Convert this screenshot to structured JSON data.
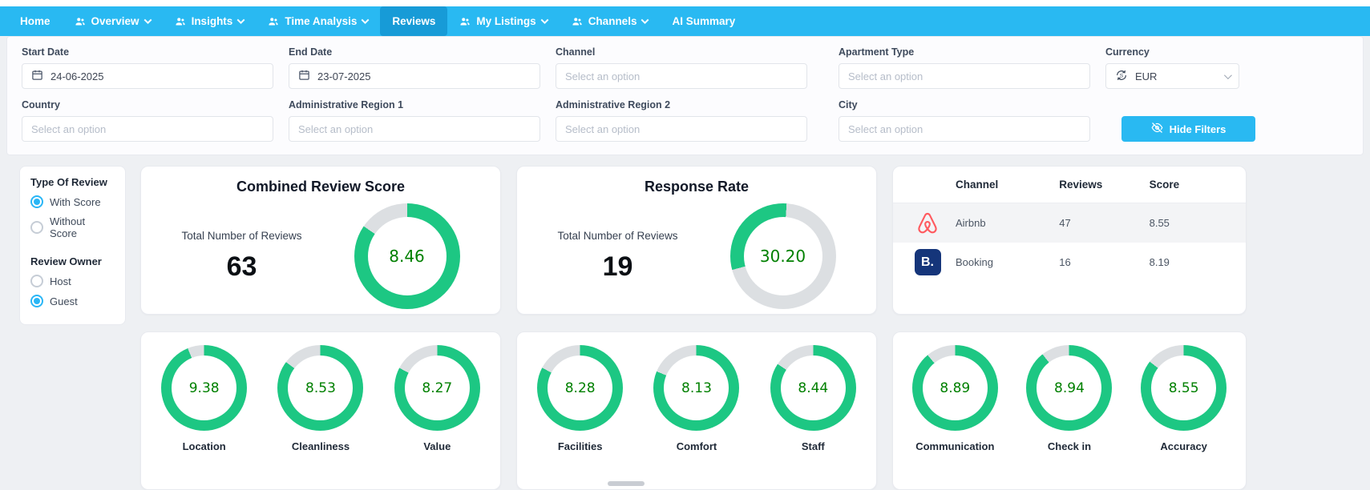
{
  "nav": {
    "items": [
      {
        "label": "Home",
        "icon": null,
        "dropdown": false,
        "active": false
      },
      {
        "label": "Overview",
        "icon": "users",
        "dropdown": true,
        "active": false
      },
      {
        "label": "Insights",
        "icon": "users",
        "dropdown": true,
        "active": false
      },
      {
        "label": "Time Analysis",
        "icon": "users",
        "dropdown": true,
        "active": false
      },
      {
        "label": "Reviews",
        "icon": null,
        "dropdown": false,
        "active": true
      },
      {
        "label": "My Listings",
        "icon": "users",
        "dropdown": true,
        "active": false
      },
      {
        "label": "Channels",
        "icon": "users",
        "dropdown": true,
        "active": false
      },
      {
        "label": "AI Summary",
        "icon": null,
        "dropdown": false,
        "active": false
      }
    ]
  },
  "filters": {
    "row1": [
      {
        "label": "Start Date",
        "value": "24-06-2025",
        "icon": "calendar"
      },
      {
        "label": "End Date",
        "value": "23-07-2025",
        "icon": "calendar"
      },
      {
        "label": "Channel",
        "placeholder": "Select an option"
      },
      {
        "label": "Apartment Type",
        "placeholder": "Select an option"
      },
      {
        "label": "Currency",
        "value": "EUR",
        "icon": "exchange",
        "chevron": true,
        "currency": true
      }
    ],
    "row2": [
      {
        "label": "Country",
        "placeholder": "Select an option"
      },
      {
        "label": "Administrative Region 1",
        "placeholder": "Select an option"
      },
      {
        "label": "Administrative Region 2",
        "placeholder": "Select an option"
      },
      {
        "label": "City",
        "placeholder": "Select an option"
      }
    ],
    "hide_filters_label": "Hide Filters"
  },
  "sidebar": {
    "groups": [
      {
        "title": "Type Of Review",
        "options": [
          {
            "label": "With Score",
            "selected": true
          },
          {
            "label": "Without Score",
            "selected": false
          }
        ]
      },
      {
        "title": "Review Owner",
        "options": [
          {
            "label": "Host",
            "selected": false
          },
          {
            "label": "Guest",
            "selected": true
          }
        ]
      }
    ]
  },
  "colors": {
    "navbar": "#29b9f2",
    "navbar_active": "#179bd7",
    "accent_blue": "#29b9f2",
    "gauge_fill": "#1dc783",
    "gauge_track": "#dcdfe2",
    "gauge_text": "#008000",
    "airbnb_red": "#FF5A5F",
    "booking_navy": "#15357a"
  },
  "chart_data": [
    {
      "type": "gauge",
      "title": "Combined Review Score",
      "metric_label": "Total Number of Reviews",
      "metric_value": "63",
      "value": 8.46,
      "max": 10,
      "display": "8.46"
    },
    {
      "type": "gauge",
      "title": "Response Rate",
      "metric_label": "Total Number of Reviews",
      "metric_value": "19",
      "value": 30.2,
      "max": 100,
      "display": "30.20",
      "start_deg": 255
    },
    {
      "type": "table",
      "columns": [
        "Channel",
        "Reviews",
        "Score"
      ],
      "rows": [
        {
          "channel": "Airbnb",
          "icon": "airbnb",
          "reviews": "47",
          "score": "8.55"
        },
        {
          "channel": "Booking",
          "icon": "booking",
          "reviews": "16",
          "score": "8.19"
        }
      ]
    },
    {
      "type": "gauge_group",
      "max": 10,
      "gauges": [
        {
          "label": "Location",
          "value": 9.38,
          "display": "9.38"
        },
        {
          "label": "Cleanliness",
          "value": 8.53,
          "display": "8.53"
        },
        {
          "label": "Value",
          "value": 8.27,
          "display": "8.27"
        }
      ]
    },
    {
      "type": "gauge_group",
      "max": 10,
      "gauges": [
        {
          "label": "Facilities",
          "value": 8.28,
          "display": "8.28"
        },
        {
          "label": "Comfort",
          "value": 8.13,
          "display": "8.13"
        },
        {
          "label": "Staff",
          "value": 8.44,
          "display": "8.44"
        }
      ]
    },
    {
      "type": "gauge_group",
      "max": 10,
      "gauges": [
        {
          "label": "Communication",
          "value": 8.89,
          "display": "8.89"
        },
        {
          "label": "Check in",
          "value": 8.94,
          "display": "8.94"
        },
        {
          "label": "Accuracy",
          "value": 8.55,
          "display": "8.55"
        }
      ]
    }
  ]
}
